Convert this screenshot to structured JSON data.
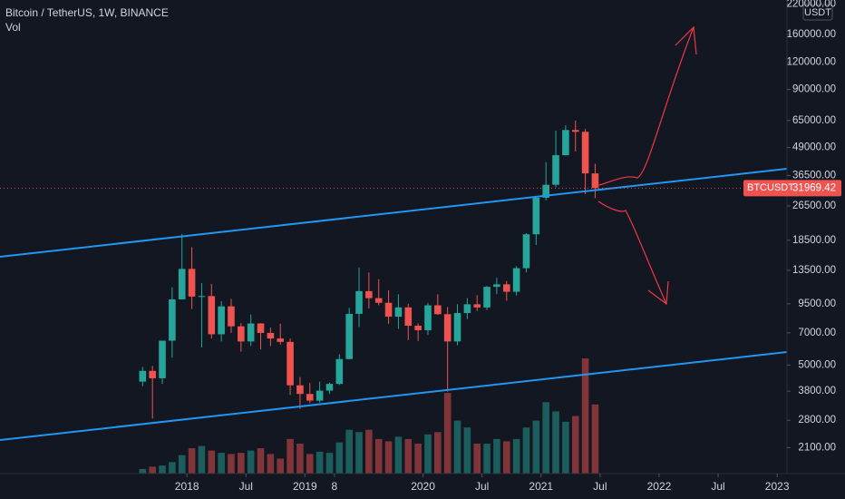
{
  "chart_data": {
    "type": "candlestick",
    "title": "Bitcoin / TetherUS, 1W, BINANCE",
    "volume_label": "Vol",
    "currency": "USDT",
    "symbol_label": "BTCUSDT",
    "last_price": 31969.42,
    "log_scale": true,
    "up_color": "#26a69a",
    "down_color": "#ef5350",
    "x": [
      "2017-08",
      "2017-09",
      "2017-10",
      "2017-11",
      "2017-12",
      "2018-01",
      "2018-02",
      "2018-03",
      "2018-04",
      "2018-05",
      "2018-06",
      "2018-07",
      "2018-08",
      "2018-09",
      "2018-10",
      "2018-11",
      "2018-12",
      "2019-01",
      "2019-02",
      "2019-03",
      "2019-04",
      "2019-05",
      "2019-06",
      "2019-07",
      "2019-08",
      "2019-09",
      "2019-10",
      "2019-11",
      "2019-12",
      "2020-01",
      "2020-02",
      "2020-03",
      "2020-04",
      "2020-05",
      "2020-06",
      "2020-07",
      "2020-08",
      "2020-09",
      "2020-10",
      "2020-11",
      "2020-12",
      "2021-01",
      "2021-02",
      "2021-03",
      "2021-04",
      "2021-05",
      "2021-06"
    ],
    "open": [
      4200,
      4700,
      4350,
      6450,
      9950,
      13700,
      10250,
      10300,
      6900,
      9250,
      7500,
      6400,
      7730,
      7000,
      6600,
      6370,
      4040,
      3690,
      3440,
      3820,
      4100,
      5320,
      8550,
      10850,
      10080,
      9600,
      8300,
      9150,
      7550,
      7200,
      9350,
      8520,
      6400,
      8620,
      9450,
      9140,
      11350,
      11650,
      10780,
      13800,
      19700,
      28900,
      33100,
      45150,
      58800,
      57700,
      37300
    ],
    "high": [
      4900,
      4950,
      6450,
      11300,
      19800,
      17200,
      11800,
      11700,
      9750,
      10000,
      7750,
      8500,
      7760,
      7400,
      7700,
      6600,
      4400,
      4140,
      4200,
      4150,
      5600,
      9100,
      13900,
      13200,
      12300,
      10950,
      10500,
      9500,
      7750,
      9600,
      10500,
      9180,
      9450,
      10080,
      10400,
      11450,
      12480,
      12070,
      14100,
      19900,
      29300,
      41950,
      58350,
      61800,
      64850,
      59500,
      41300
    ],
    "low": [
      4000,
      2850,
      4100,
      5400,
      10700,
      9000,
      6000,
      6600,
      6400,
      7000,
      5750,
      6100,
      5880,
      6100,
      6200,
      3650,
      3150,
      3350,
      3370,
      3690,
      4050,
      5300,
      7450,
      9050,
      9350,
      7700,
      7300,
      6500,
      6430,
      6850,
      8450,
      3780,
      6150,
      8100,
      8800,
      8900,
      10500,
      9800,
      10370,
      13200,
      17600,
      28100,
      32300,
      45000,
      47000,
      30000,
      28800
    ],
    "close": [
      4700,
      4350,
      6450,
      9950,
      13700,
      10250,
      10300,
      6900,
      9250,
      7500,
      6400,
      7730,
      7000,
      6600,
      6370,
      4040,
      3690,
      3440,
      3820,
      4100,
      5320,
      8550,
      10850,
      10080,
      9600,
      8300,
      9150,
      7550,
      7200,
      9350,
      8520,
      6400,
      8620,
      9450,
      9140,
      11350,
      11650,
      10780,
      13800,
      19700,
      28900,
      33100,
      45150,
      58800,
      57700,
      37300,
      31969.42
    ],
    "volume": [
      4,
      6,
      7,
      10,
      16,
      22,
      24,
      20,
      18,
      17,
      18,
      20,
      22,
      17,
      13,
      30,
      26,
      17,
      19,
      18,
      27,
      38,
      36,
      38,
      30,
      28,
      32,
      30,
      26,
      34,
      36,
      70,
      46,
      40,
      26,
      26,
      30,
      28,
      30,
      40,
      46,
      62,
      54,
      45,
      50,
      100,
      60
    ],
    "xlim": [
      "2016-06",
      "2023-02"
    ],
    "xticks": [
      {
        "value": "2018-01",
        "label": "2018"
      },
      {
        "value": "2018-07",
        "label": "Jul"
      },
      {
        "value": "2019-01",
        "label": "2019"
      },
      {
        "value": "2019-04",
        "label": "8"
      },
      {
        "value": "2020-01",
        "label": "2020"
      },
      {
        "value": "2020-07",
        "label": "Jul"
      },
      {
        "value": "2021-01",
        "label": "2021"
      },
      {
        "value": "2021-07",
        "label": "Jul"
      },
      {
        "value": "2022-01",
        "label": "2022"
      },
      {
        "value": "2022-07",
        "label": "Jul"
      },
      {
        "value": "2023-01",
        "label": "2023"
      }
    ],
    "ylim": [
      1600,
      230000
    ],
    "yticks": [
      {
        "value": 220000,
        "label": "220000.00"
      },
      {
        "value": 160000,
        "label": "160000.00"
      },
      {
        "value": 120000,
        "label": "120000.00"
      },
      {
        "value": 90000,
        "label": "90000.00"
      },
      {
        "value": 65000,
        "label": "65000.00"
      },
      {
        "value": 49000,
        "label": "49000.00"
      },
      {
        "value": 36500,
        "label": "36500.00"
      },
      {
        "value": 26500,
        "label": "26500.00"
      },
      {
        "value": 18500,
        "label": "18500.00"
      },
      {
        "value": 13500,
        "label": "13500.00"
      },
      {
        "value": 9500,
        "label": "9500.00"
      },
      {
        "value": 7000,
        "label": "7000.00"
      },
      {
        "value": 5000,
        "label": "5000.00"
      },
      {
        "value": 3800,
        "label": "3800.00"
      },
      {
        "value": 2800,
        "label": "2800.00"
      },
      {
        "value": 2100,
        "label": "2100.00"
      }
    ]
  }
}
